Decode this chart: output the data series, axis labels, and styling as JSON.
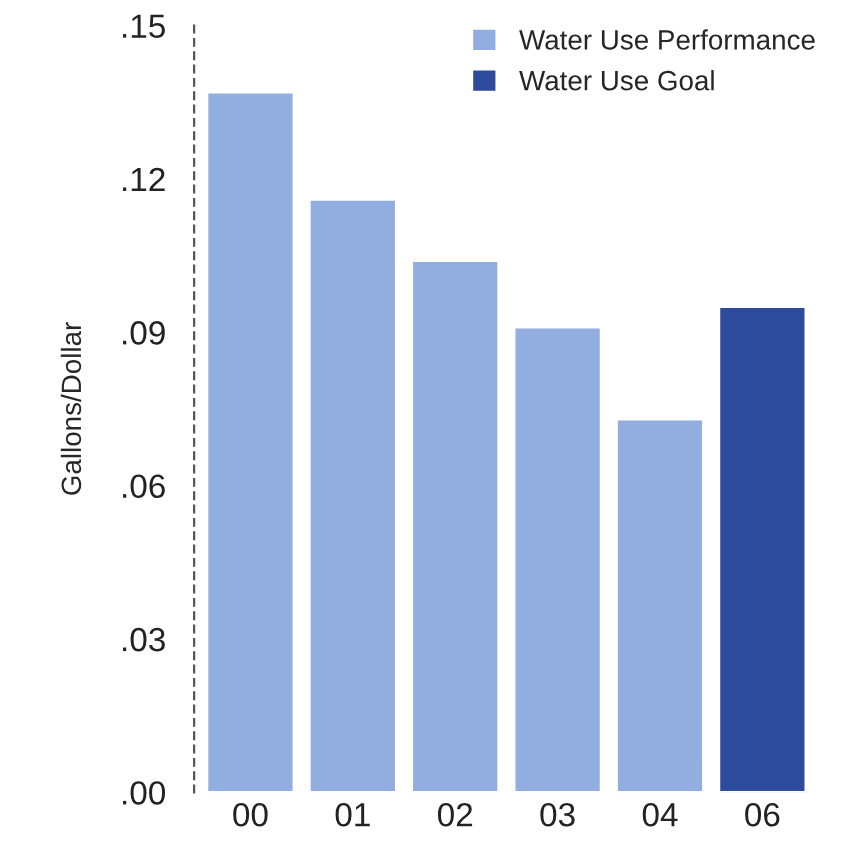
{
  "chart_data": {
    "type": "bar",
    "ylabel": "Gallons/Dollar",
    "categories": [
      "00",
      "01",
      "02",
      "03",
      "04",
      "06"
    ],
    "series": [
      {
        "name": "Water Use Performance",
        "color": "#92ade0",
        "values": [
          0.137,
          0.116,
          0.104,
          0.091,
          0.073,
          null
        ]
      },
      {
        "name": "Water Use Goal",
        "color": "#2e4a9a",
        "values": [
          null,
          null,
          null,
          null,
          null,
          0.095
        ]
      }
    ],
    "ylim": [
      0,
      0.15
    ],
    "yticks": [
      {
        "value": 0,
        "label": ".00"
      },
      {
        "value": 0.03,
        "label": ".03"
      },
      {
        "value": 0.06,
        "label": ".06"
      },
      {
        "value": 0.09,
        "label": ".09"
      },
      {
        "value": 0.12,
        "label": ".12"
      },
      {
        "value": 0.15,
        "label": ".15"
      }
    ],
    "grid": false,
    "legend": "top right"
  }
}
